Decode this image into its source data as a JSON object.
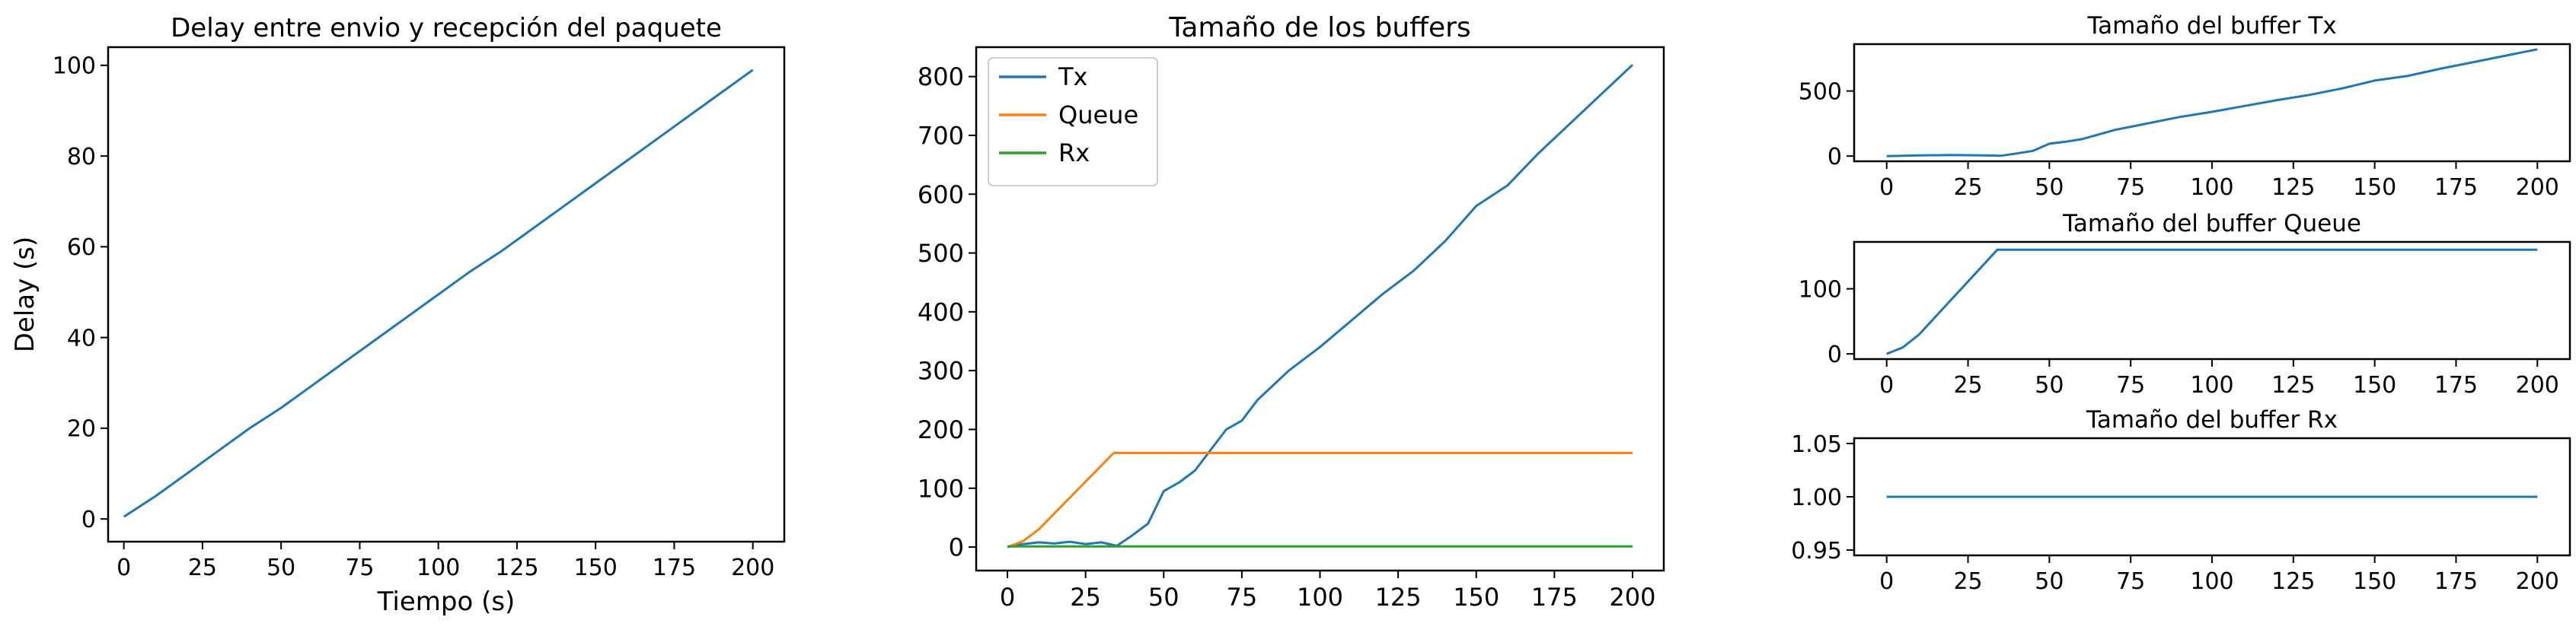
{
  "chart_data": [
    {
      "id": "delay",
      "type": "line",
      "title": "Delay entre envio y recepción del paquete",
      "xlabel": "Tiempo (s)",
      "ylabel": "Delay (s)",
      "xlim": [
        -5,
        210
      ],
      "ylim": [
        -5,
        104
      ],
      "xticks": [
        0,
        25,
        50,
        75,
        100,
        125,
        150,
        175,
        200
      ],
      "yticks": [
        0,
        20,
        40,
        60,
        80,
        100
      ],
      "grid": false,
      "series": [
        {
          "color": "#1f77b4",
          "x": [
            0,
            10,
            20,
            30,
            40,
            50,
            60,
            70,
            80,
            90,
            100,
            110,
            120,
            130,
            140,
            150,
            160,
            170,
            180,
            190,
            200
          ],
          "y": [
            0.5,
            5,
            10,
            15,
            20,
            24.5,
            29.5,
            34.5,
            39.5,
            44.5,
            49.5,
            54.5,
            59,
            64,
            69,
            74,
            79,
            84,
            89,
            94,
            99
          ]
        }
      ]
    },
    {
      "id": "buffers",
      "type": "line",
      "title": "Tamaño de los buffers",
      "xlabel": "",
      "ylabel": "",
      "xlim": [
        -10,
        210
      ],
      "ylim": [
        -40,
        850
      ],
      "xticks": [
        0,
        25,
        50,
        75,
        100,
        125,
        150,
        175,
        200
      ],
      "yticks": [
        0,
        100,
        200,
        300,
        400,
        500,
        600,
        700,
        800
      ],
      "legend": "top-left",
      "grid": false,
      "series": [
        {
          "name": "Tx",
          "color": "#1f77b4",
          "x": [
            0,
            5,
            10,
            15,
            20,
            25,
            30,
            35,
            40,
            45,
            50,
            55,
            60,
            65,
            70,
            75,
            80,
            90,
            100,
            110,
            120,
            130,
            140,
            150,
            160,
            170,
            180,
            190,
            200
          ],
          "y": [
            0,
            5,
            8,
            6,
            9,
            5,
            8,
            2,
            20,
            40,
            95,
            110,
            130,
            165,
            200,
            215,
            250,
            300,
            340,
            385,
            430,
            470,
            520,
            580,
            615,
            670,
            720,
            770,
            820
          ]
        },
        {
          "name": "Queue",
          "color": "#ff7f0e",
          "x": [
            0,
            5,
            10,
            34,
            35,
            200
          ],
          "y": [
            0,
            10,
            30,
            160,
            160,
            160
          ]
        },
        {
          "name": "Rx",
          "color": "#2ca02c",
          "x": [
            0,
            200
          ],
          "y": [
            1,
            1
          ]
        }
      ]
    },
    {
      "id": "buffer-tx",
      "type": "line",
      "title": "Tamaño del buffer Tx",
      "xlim": [
        -10,
        210
      ],
      "ylim": [
        -40,
        860
      ],
      "xticks": [
        0,
        25,
        50,
        75,
        100,
        125,
        150,
        175,
        200
      ],
      "yticks": [
        0,
        500
      ],
      "grid": false,
      "series": [
        {
          "color": "#1f77b4",
          "x": [
            0,
            10,
            20,
            30,
            35,
            40,
            45,
            50,
            55,
            60,
            70,
            80,
            90,
            100,
            110,
            120,
            130,
            140,
            150,
            160,
            170,
            180,
            190,
            200
          ],
          "y": [
            0,
            5,
            8,
            5,
            2,
            20,
            40,
            95,
            110,
            130,
            200,
            250,
            300,
            340,
            385,
            430,
            470,
            520,
            580,
            615,
            670,
            720,
            770,
            820
          ]
        }
      ]
    },
    {
      "id": "buffer-queue",
      "type": "line",
      "title": "Tamaño del buffer Queue",
      "xlim": [
        -10,
        210
      ],
      "ylim": [
        -8,
        172
      ],
      "xticks": [
        0,
        25,
        50,
        75,
        100,
        125,
        150,
        175,
        200
      ],
      "yticks": [
        0,
        100
      ],
      "grid": false,
      "series": [
        {
          "color": "#1f77b4",
          "x": [
            0,
            5,
            10,
            34,
            35,
            200
          ],
          "y": [
            0,
            10,
            30,
            160,
            160,
            160
          ]
        }
      ]
    },
    {
      "id": "buffer-rx",
      "type": "line",
      "title": "Tamaño del buffer Rx",
      "xlim": [
        -10,
        210
      ],
      "ylim": [
        0.945,
        1.055
      ],
      "xticks": [
        0,
        25,
        50,
        75,
        100,
        125,
        150,
        175,
        200
      ],
      "yticks": [
        "0.95",
        "1.00",
        "1.05"
      ],
      "grid": false,
      "series": [
        {
          "color": "#1f77b4",
          "x": [
            0,
            200
          ],
          "y": [
            1,
            1
          ]
        }
      ]
    }
  ]
}
